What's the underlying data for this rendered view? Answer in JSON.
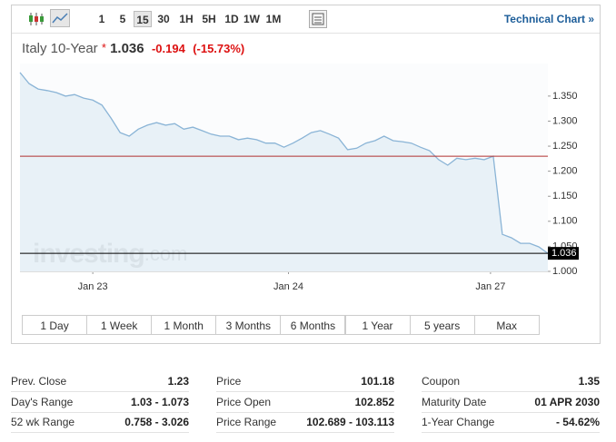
{
  "toolbar": {
    "intervals": [
      "1",
      "5",
      "15",
      "30",
      "1H",
      "5H",
      "1D",
      "1W",
      "1M"
    ],
    "active_interval": 2,
    "link": "Technical Chart »"
  },
  "header": {
    "name": "Italy 10-Year",
    "star": "*",
    "price": "1.036",
    "change": "-0.194",
    "change_percent": "(-15.73%)"
  },
  "chart_data": {
    "type": "line",
    "color": "#8ab4d6",
    "fill": "#e4eef6",
    "watermark": [
      "investing",
      ".com"
    ],
    "x": [
      0,
      1,
      2,
      3,
      4,
      5,
      6,
      7,
      8,
      9,
      10,
      11,
      12,
      13,
      14,
      15,
      16,
      17,
      18,
      19,
      20,
      21,
      22,
      23,
      24,
      25,
      26,
      27,
      28,
      29,
      30,
      31,
      32,
      33,
      34,
      35,
      36,
      37,
      38,
      39,
      40,
      41,
      42,
      43,
      44,
      45,
      46,
      47,
      48,
      49,
      50,
      51,
      52,
      53,
      54,
      55,
      56,
      57,
      58
    ],
    "values": [
      1.397,
      1.375,
      1.364,
      1.361,
      1.357,
      1.35,
      1.353,
      1.346,
      1.342,
      1.332,
      1.306,
      1.277,
      1.27,
      1.284,
      1.292,
      1.297,
      1.292,
      1.295,
      1.284,
      1.288,
      1.281,
      1.274,
      1.27,
      1.27,
      1.263,
      1.266,
      1.263,
      1.256,
      1.256,
      1.248,
      1.256,
      1.266,
      1.277,
      1.281,
      1.274,
      1.266,
      1.243,
      1.246,
      1.256,
      1.261,
      1.27,
      1.261,
      1.259,
      1.256,
      1.248,
      1.241,
      1.223,
      1.212,
      1.226,
      1.223,
      1.226,
      1.223,
      1.23,
      1.074,
      1.067,
      1.056,
      1.056,
      1.049,
      1.036
    ],
    "xlim": [
      0,
      58
    ],
    "xticks": [
      {
        "value": 8,
        "label": "Jan 23"
      },
      {
        "value": 29.5,
        "label": "Jan 24"
      },
      {
        "value": 51.7,
        "label": "Jan 27"
      }
    ],
    "ylim": [
      1,
      1.415
    ],
    "yticks": [
      {
        "value": 1,
        "label": "1.000"
      },
      {
        "value": 1.05,
        "label": "1.050"
      },
      {
        "value": 1.1,
        "label": "1.100"
      },
      {
        "value": 1.15,
        "label": "1.150"
      },
      {
        "value": 1.2,
        "label": "1.200"
      },
      {
        "value": 1.25,
        "label": "1.250"
      },
      {
        "value": 1.3,
        "label": "1.300"
      },
      {
        "value": 1.35,
        "label": "1.350"
      }
    ],
    "hlines": [
      {
        "value": 1.23,
        "color": "#b03030"
      },
      {
        "value": 1.036,
        "color": "#000000"
      }
    ]
  },
  "ranges": [
    "1 Day",
    "1 Week",
    "1 Month",
    "3 Months",
    "6 Months",
    "1 Year",
    "5 years",
    "Max"
  ],
  "stats": [
    [
      [
        "Prev. Close",
        "1.23"
      ],
      [
        "Day's Range",
        "1.03 - 1.073"
      ],
      [
        "52 wk Range",
        "0.758 - 3.026"
      ]
    ],
    [
      [
        "Price",
        "101.18"
      ],
      [
        "Price Open",
        "102.852"
      ],
      [
        "Price Range",
        "102.689 - 103.113"
      ]
    ],
    [
      [
        "Coupon",
        "1.35"
      ],
      [
        "Maturity Date",
        "01 APR 2030"
      ],
      [
        "1-Year Change",
        "- 54.62%"
      ]
    ]
  ]
}
